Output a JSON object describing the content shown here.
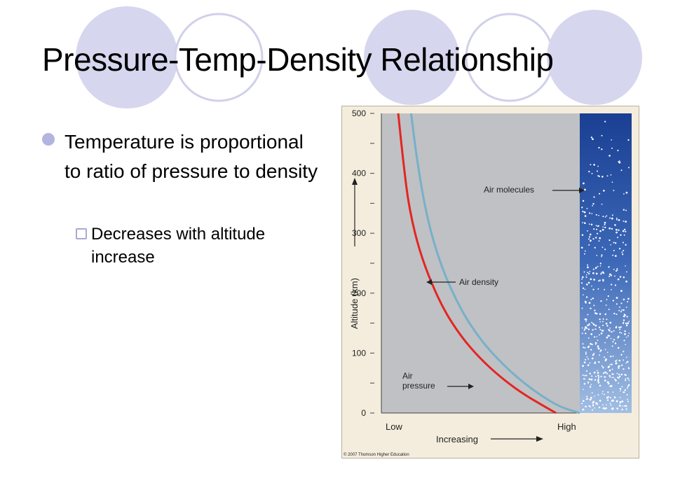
{
  "slide": {
    "title": "Pressure-Temp-Density Relationship",
    "bullets": [
      {
        "text": "Temperature is proportional to ratio of pressure to density",
        "sub": "Decreases with altitude increase"
      }
    ]
  },
  "theme": {
    "circle_fill": "#d6d6ee",
    "circle_outline": "#d0d0ea",
    "bullet_color": "#b4b4e0"
  },
  "chart_data": {
    "type": "line",
    "title": "",
    "xlabel": "Increasing",
    "ylabel": "Altitude (km)",
    "x_tick_labels": [
      "Low",
      "High"
    ],
    "y_ticks": [
      0,
      100,
      200,
      300,
      400,
      500
    ],
    "ylim": [
      0,
      500
    ],
    "xlim": [
      0,
      1
    ],
    "series": [
      {
        "name": "Air pressure",
        "color": "#e52421",
        "points": [
          [
            0.88,
            0
          ],
          [
            0.8,
            15
          ],
          [
            0.7,
            35
          ],
          [
            0.6,
            60
          ],
          [
            0.5,
            90
          ],
          [
            0.4,
            128
          ],
          [
            0.3,
            180
          ],
          [
            0.2,
            260
          ],
          [
            0.14,
            340
          ],
          [
            0.11,
            420
          ],
          [
            0.085,
            500
          ]
        ]
      },
      {
        "name": "Air density",
        "color": "#77b0c8",
        "points": [
          [
            1.0,
            0
          ],
          [
            0.9,
            10
          ],
          [
            0.8,
            30
          ],
          [
            0.7,
            55
          ],
          [
            0.6,
            85
          ],
          [
            0.5,
            122
          ],
          [
            0.4,
            172
          ],
          [
            0.3,
            245
          ],
          [
            0.23,
            325
          ],
          [
            0.18,
            420
          ],
          [
            0.15,
            500
          ]
        ]
      }
    ],
    "annotations": [
      "Air molecules",
      "Air density",
      "Air pressure"
    ],
    "panel_label": "Air molecules",
    "credit": "© 2007 Thomson Higher Education",
    "axis_arrow_label": "Increasing",
    "colors": {
      "plot_bg": "#bfc1c4",
      "panel_top": "#1a3f93",
      "panel_bottom": "#8fb2df",
      "frame_bg": "#f4eddd"
    }
  }
}
